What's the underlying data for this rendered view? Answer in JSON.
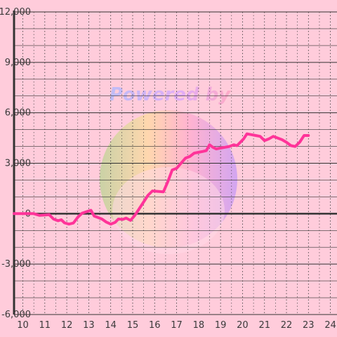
{
  "chart_data": {
    "type": "line",
    "title": "",
    "xlabel": "",
    "ylabel": "",
    "xlim": [
      9.6,
      24.3
    ],
    "ylim": [
      -6000,
      12000
    ],
    "x_ticks": [
      10,
      11,
      12,
      13,
      14,
      15,
      16,
      17,
      18,
      19,
      20,
      21,
      22,
      23,
      24
    ],
    "x_tick_labels": [
      "10",
      "11",
      "12",
      "13",
      "14",
      "15",
      "16",
      "17",
      "18",
      "19",
      "20",
      "21",
      "22",
      "23",
      "24"
    ],
    "y_ticks": [
      -6000,
      -3000,
      0,
      3000,
      6000,
      9000,
      12000
    ],
    "y_tick_labels": [
      "-6,000",
      "-3,000",
      "0",
      "3,000",
      "6,000",
      "9,000",
      "12,000"
    ],
    "y_minor_step": 1000,
    "x_minor_step": 0.5,
    "grid": true,
    "legend": "none",
    "colors": {
      "background": "#ffccdb",
      "line": "#ff3399",
      "grid_major": "#333333",
      "grid_minor": "#333333",
      "zero_line": "#333333",
      "axis": "#333333"
    },
    "series": [
      {
        "x": [
          9.6,
          10.0,
          10.5,
          10.6,
          10.75,
          11.0,
          11.2,
          11.4,
          11.6,
          11.75,
          11.9,
          12.1,
          12.3,
          12.5,
          12.7,
          12.9,
          13.1,
          13.25,
          13.45,
          13.6,
          13.8,
          14.0,
          14.2,
          14.35,
          14.55,
          14.7,
          14.9,
          15.1,
          15.3,
          15.5,
          15.7,
          15.9,
          16.2,
          16.4,
          16.6,
          16.8,
          17.0,
          17.2,
          17.4,
          17.6,
          17.8,
          18.0,
          18.2,
          18.35,
          18.5,
          18.65,
          18.8,
          19.0,
          19.2,
          19.4,
          19.6,
          19.75,
          19.9,
          20.05,
          20.2,
          20.4,
          20.6,
          20.8,
          21.0,
          21.2,
          21.4,
          21.6,
          21.8,
          22.0,
          22.2,
          22.4,
          22.6,
          22.8,
          23.0
        ],
        "y": [
          0,
          0,
          0,
          -40,
          -100,
          -80,
          -60,
          -320,
          -420,
          -360,
          -550,
          -620,
          -560,
          -220,
          30,
          120,
          200,
          -140,
          -240,
          -320,
          -500,
          -620,
          -520,
          -320,
          -340,
          -260,
          -400,
          -100,
          300,
          700,
          1100,
          1350,
          1320,
          1300,
          1900,
          2600,
          2700,
          3000,
          3300,
          3400,
          3600,
          3650,
          3700,
          3750,
          4100,
          3950,
          3850,
          3900,
          3950,
          4000,
          4100,
          4050,
          4250,
          4450,
          4750,
          4700,
          4650,
          4600,
          4350,
          4450,
          4600,
          4500,
          4400,
          4250,
          4050,
          4000,
          4250,
          4650,
          4650
        ]
      }
    ]
  },
  "watermark": {
    "text": "Powered by"
  }
}
